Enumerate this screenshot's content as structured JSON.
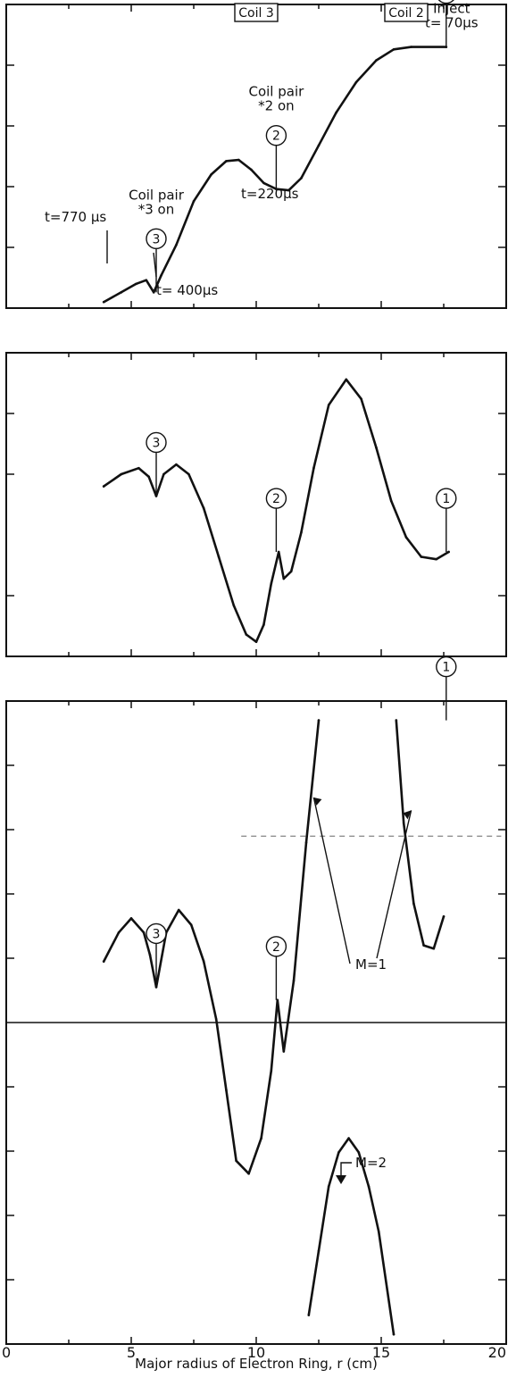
{
  "figure": {
    "x_axis_label": "Major radius of Electron Ring, r (cm)",
    "x_tick_labels": [
      "0",
      "5",
      "10",
      "15",
      "20"
    ]
  },
  "chart_data": [
    {
      "type": "line",
      "xlim": [
        0,
        20
      ],
      "grid": false,
      "coil_labels": [
        {
          "text": "Coil 3",
          "x": 10.0
        },
        {
          "text": "Coil 2",
          "x": 16.0
        }
      ],
      "series": [
        {
          "x": [
            3.9,
            4.6,
            5.2,
            5.6,
            5.9,
            6.2,
            6.8,
            7.5,
            8.2,
            8.8,
            9.3,
            9.8,
            10.3,
            10.8,
            11.3,
            11.8,
            12.5,
            13.2,
            14.0,
            14.8,
            15.5,
            16.2,
            17.6
          ],
          "y": [
            0.05,
            0.13,
            0.2,
            0.23,
            0.13,
            0.27,
            0.52,
            0.88,
            1.1,
            1.21,
            1.22,
            1.14,
            1.03,
            0.98,
            0.97,
            1.07,
            1.34,
            1.61,
            1.86,
            2.04,
            2.13,
            2.15,
            2.15
          ]
        }
      ],
      "markers": [
        {
          "num": "3",
          "x": 6.0,
          "label": "Coil pair\n*3 on"
        },
        {
          "num": "2",
          "x": 10.8,
          "label": "Coil pair\n*2 on"
        },
        {
          "num": "1",
          "x": 17.6,
          "label": "Inject\nt= 70μs"
        }
      ],
      "annotations": [
        "t=770 μs",
        "t= 400μs",
        "t=220μs"
      ]
    },
    {
      "type": "line",
      "xlim": [
        0,
        20
      ],
      "grid": false,
      "series": [
        {
          "x": [
            3.9,
            4.6,
            5.3,
            5.7,
            6.0,
            6.3,
            6.8,
            7.3,
            7.9,
            8.5,
            9.1,
            9.6,
            10.0,
            10.3,
            10.6,
            10.9,
            11.1,
            11.4,
            11.8,
            12.3,
            12.9,
            13.6,
            14.2,
            14.8,
            15.4,
            16.0,
            16.6,
            17.2,
            17.7
          ],
          "y": [
            0.4,
            0.5,
            0.55,
            0.48,
            0.32,
            0.5,
            0.58,
            0.5,
            0.22,
            -0.18,
            -0.58,
            -0.82,
            -0.88,
            -0.74,
            -0.4,
            -0.14,
            -0.36,
            -0.3,
            0.02,
            0.55,
            1.07,
            1.28,
            1.12,
            0.72,
            0.28,
            -0.02,
            -0.18,
            -0.2,
            -0.14
          ]
        }
      ],
      "markers": [
        {
          "num": "3",
          "x": 6.0
        },
        {
          "num": "2",
          "x": 10.8
        },
        {
          "num": "1",
          "x": 17.6
        }
      ]
    },
    {
      "type": "line",
      "xlim": [
        0,
        20
      ],
      "grid": false,
      "series": [
        {
          "name": "M=1",
          "x": [
            3.9,
            4.5,
            5.0,
            5.5,
            5.75,
            6.0,
            6.4,
            6.9,
            7.4,
            7.9,
            8.4,
            8.8,
            9.2,
            9.7,
            10.2,
            10.6,
            10.85,
            11.1,
            11.5,
            12.0,
            12.5
          ],
          "y": [
            0.95,
            1.4,
            1.62,
            1.4,
            1.05,
            0.55,
            1.4,
            1.75,
            1.52,
            0.95,
            0.05,
            -1.05,
            -2.15,
            -2.35,
            -1.8,
            -0.75,
            0.35,
            -0.45,
            0.65,
            2.8,
            4.7
          ]
        },
        {
          "name": "M=1",
          "x": [
            15.6,
            15.9,
            16.3,
            16.7,
            17.1,
            17.5
          ],
          "y": [
            4.7,
            3.1,
            1.85,
            1.2,
            1.15,
            1.65
          ]
        },
        {
          "name": "M=2",
          "x": [
            12.1,
            12.5,
            12.9,
            13.3,
            13.7,
            14.1,
            14.5,
            14.9,
            15.5
          ],
          "y": [
            -4.55,
            -3.55,
            -2.55,
            -2.02,
            -1.8,
            -2.02,
            -2.55,
            -3.25,
            -4.85
          ]
        }
      ],
      "markers": [
        {
          "num": "3",
          "x": 6.0
        },
        {
          "num": "2",
          "x": 10.8
        },
        {
          "num": "1",
          "x": 17.6
        }
      ],
      "annotations": [
        "M=1",
        "M=2"
      ]
    }
  ]
}
